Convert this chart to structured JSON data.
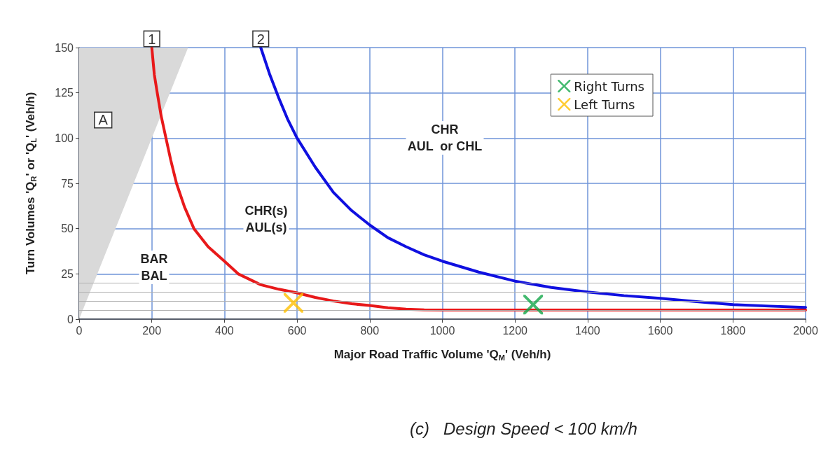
{
  "chart_data": {
    "type": "line",
    "xlabel": "Major Road Traffic Volume 'Q$_{M}$' (Veh/h)",
    "ylabel": "Turn Volumes 'Q$_{R}$' or 'Q$_{L}$' (Veh/h)",
    "xlim": [
      0,
      2000
    ],
    "xticks": [
      0,
      200,
      400,
      600,
      800,
      1000,
      1200,
      1400,
      1600,
      1800,
      2000
    ],
    "ylim": [
      0,
      150
    ],
    "yticks": [
      0,
      {
        "value": 5,
        "label": null
      },
      {
        "value": 10,
        "label": null
      },
      {
        "value": 15,
        "label": null
      },
      {
        "value": 20,
        "label": null
      },
      25,
      50,
      75,
      100,
      125,
      150
    ],
    "grid": true,
    "legend": "top right",
    "line_style": "solid",
    "series": [
      {
        "type": "area",
        "color": "#d9d9d9",
        "x": [
          0,
          300
        ],
        "values": [
          0,
          150
        ]
      },
      {
        "color": "#e8191a",
        "x": [
          200,
          207,
          215,
          226,
          239,
          252,
          268,
          290,
          316,
          355,
          400,
          438,
          500,
          550,
          600,
          650,
          700,
          750,
          800,
          850,
          900,
          950,
          1000,
          2000
        ],
        "values": [
          150,
          135,
          125,
          112,
          100,
          88,
          75,
          62,
          50,
          40,
          32,
          25,
          19,
          16.5,
          14.5,
          12,
          10,
          8.5,
          7.5,
          6.3,
          5.5,
          5.1,
          5,
          5
        ]
      },
      {
        "color": "#1010e0",
        "x": [
          500,
          525,
          550,
          575,
          600,
          650,
          700,
          750,
          800,
          850,
          900,
          950,
          1000,
          1100,
          1200,
          1300,
          1400,
          1500,
          1600,
          1700,
          1800,
          1900,
          2000
        ],
        "values": [
          150,
          135,
          122,
          110,
          100,
          84,
          70,
          60,
          52,
          45,
          40,
          35.5,
          32,
          26,
          21,
          17.5,
          15,
          13,
          11.5,
          9.7,
          8,
          7.2,
          6.5
        ]
      },
      {
        "type": "scatter",
        "name": "Right Turns",
        "color": "#13a84a",
        "marker": "cross",
        "x": [
          1250
        ],
        "values": [
          8
        ]
      },
      {
        "type": "scatter",
        "name": "Left Turns",
        "color": "#ffbf00",
        "marker": "cross",
        "x": [
          590
        ],
        "values": [
          9
        ]
      }
    ],
    "annotations": [
      {
        "text": "1",
        "x": 200,
        "y": 150
      },
      {
        "text": "2",
        "x": 500,
        "y": 150
      },
      {
        "text": "A",
        "x": 66,
        "y": 110
      },
      "CHR\nAUL  or CHL",
      "CHR(s)\nAUL(s)",
      "BAR\nBAL",
      "(c)   Design Speed < 100 km/h"
    ]
  }
}
